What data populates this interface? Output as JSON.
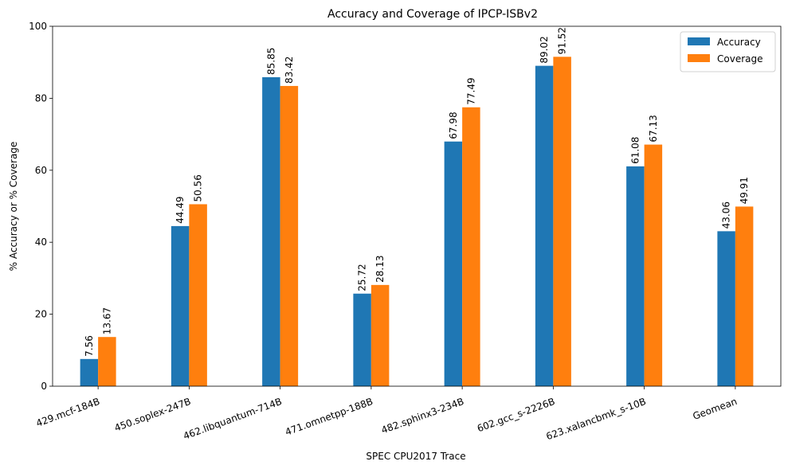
{
  "chart_data": {
    "type": "bar",
    "title": "Accuracy and Coverage of IPCP-ISBv2",
    "xlabel": "SPEC CPU2017 Trace",
    "ylabel": "% Accuracy or % Coverage",
    "ylim": [
      0,
      100
    ],
    "yticks": [
      0,
      20,
      40,
      60,
      80,
      100
    ],
    "grid": false,
    "legend_position": "top-right",
    "categories": [
      "429.mcf-184B",
      "450.soplex-247B",
      "462.libquantum-714B",
      "471.omnetpp-188B",
      "482.sphinx3-234B",
      "602.gcc_s-2226B",
      "623.xalancbmk_s-10B",
      "Geomean"
    ],
    "series": [
      {
        "name": "Accuracy",
        "color": "#1f77b4",
        "values": [
          7.56,
          44.49,
          85.85,
          25.72,
          67.98,
          89.02,
          61.08,
          43.06
        ],
        "labels": [
          "7.56",
          "44.49",
          "85.85",
          "25.72",
          "67.98",
          "89.02",
          "61.08",
          "43.06"
        ]
      },
      {
        "name": "Coverage",
        "color": "#ff7f0e",
        "values": [
          13.67,
          50.56,
          83.42,
          28.13,
          77.49,
          91.52,
          67.13,
          49.91
        ],
        "labels": [
          "13.67",
          "50.56",
          "83.42",
          "28.13",
          "77.49",
          "91.52",
          "67.13",
          "49.91"
        ]
      }
    ]
  }
}
